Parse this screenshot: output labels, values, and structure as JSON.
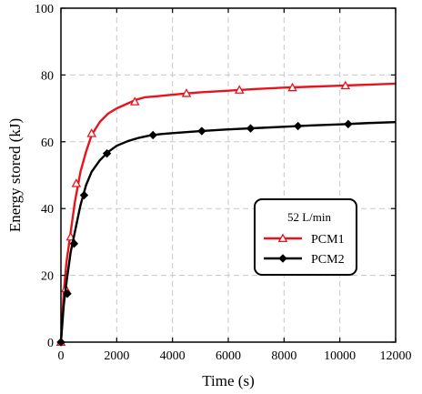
{
  "chart_data": {
    "type": "line",
    "xlabel": "Time (s)",
    "ylabel": "Energy stored (kJ)",
    "xlim": [
      0,
      12000
    ],
    "ylim": [
      0,
      100
    ],
    "xticks": [
      0,
      2000,
      4000,
      6000,
      8000,
      10000,
      12000
    ],
    "yticks": [
      0,
      20,
      40,
      60,
      80,
      100
    ],
    "grid": true,
    "legend": {
      "placement": "center-right",
      "title": "52 L/min",
      "entries": [
        "PCM1",
        "PCM2"
      ]
    },
    "series": [
      {
        "name": "PCM1",
        "color": "#e8141c",
        "marker": "triangle",
        "x": [
          0,
          100,
          200,
          350,
          500,
          700,
          900,
          1100,
          1400,
          1700,
          2000,
          2400,
          2700,
          3000,
          3400,
          4000,
          5000,
          6000,
          7000,
          8000,
          9000,
          10000,
          11000,
          12000
        ],
        "y": [
          0,
          15,
          24,
          33,
          42,
          51,
          57,
          62,
          66,
          68.5,
          70,
          71.5,
          72.6,
          73.3,
          73.6,
          74.1,
          74.8,
          75.3,
          75.8,
          76.2,
          76.5,
          76.8,
          77.1,
          77.4
        ],
        "marker_points": [
          {
            "x": 0,
            "y": 0
          },
          {
            "x": 170,
            "y": 16
          },
          {
            "x": 350,
            "y": 31.5
          },
          {
            "x": 550,
            "y": 47.5
          },
          {
            "x": 1100,
            "y": 62.5
          },
          {
            "x": 2650,
            "y": 72
          },
          {
            "x": 4500,
            "y": 74.5
          },
          {
            "x": 6400,
            "y": 75.5
          },
          {
            "x": 8300,
            "y": 76.2
          },
          {
            "x": 10200,
            "y": 76.8
          }
        ]
      },
      {
        "name": "PCM2",
        "color": "#000000",
        "marker": "diamond",
        "x": [
          0,
          100,
          200,
          350,
          500,
          700,
          900,
          1100,
          1400,
          1700,
          2000,
          2400,
          2800,
          3200,
          3600,
          4000,
          5000,
          6000,
          7000,
          8000,
          9000,
          10000,
          11000,
          12000
        ],
        "y": [
          0,
          11,
          18,
          27,
          33,
          41,
          47,
          51,
          54.5,
          57,
          58.8,
          60.2,
          61.2,
          61.9,
          62.3,
          62.6,
          63.2,
          63.7,
          64.1,
          64.5,
          64.9,
          65.2,
          65.6,
          65.9
        ],
        "marker_points": [
          {
            "x": 0,
            "y": 0
          },
          {
            "x": 230,
            "y": 14.5
          },
          {
            "x": 470,
            "y": 29.5
          },
          {
            "x": 830,
            "y": 44
          },
          {
            "x": 1650,
            "y": 56.5
          },
          {
            "x": 3300,
            "y": 62
          },
          {
            "x": 5050,
            "y": 63.2
          },
          {
            "x": 6800,
            "y": 64
          },
          {
            "x": 8500,
            "y": 64.7
          },
          {
            "x": 10300,
            "y": 65.3
          }
        ]
      }
    ]
  }
}
